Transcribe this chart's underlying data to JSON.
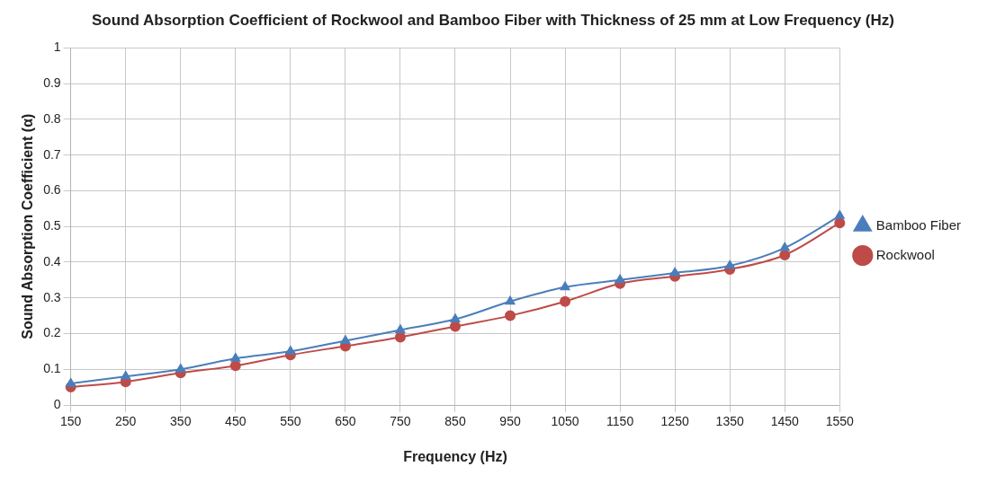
{
  "chart_data": {
    "type": "line",
    "title": "Sound Absorption Coefficient of Rockwool and Bamboo Fiber with Thickness of 25 mm at Low Frequency (Hz)",
    "xlabel": "Frequency (Hz)",
    "ylabel": "Sound Absorption Coefficient (α)",
    "categories": [
      "150",
      "250",
      "350",
      "450",
      "550",
      "650",
      "750",
      "850",
      "950",
      "1050",
      "1150",
      "1250",
      "1350",
      "1450",
      "1550"
    ],
    "series": [
      {
        "name": "Bamboo Fiber",
        "color": "#4a7ebb",
        "marker": "triangle",
        "values": [
          0.06,
          0.08,
          0.1,
          0.13,
          0.15,
          0.18,
          0.21,
          0.24,
          0.29,
          0.33,
          0.35,
          0.37,
          0.39,
          0.44,
          0.53
        ]
      },
      {
        "name": "Rockwool",
        "color": "#be4b48",
        "marker": "circle",
        "values": [
          0.05,
          0.065,
          0.09,
          0.11,
          0.14,
          0.165,
          0.19,
          0.22,
          0.25,
          0.29,
          0.34,
          0.36,
          0.38,
          0.42,
          0.51
        ]
      }
    ],
    "ylim": [
      0,
      1
    ],
    "yticks": [
      0,
      0.1,
      0.2,
      0.3,
      0.4,
      0.5,
      0.6,
      0.7,
      0.8,
      0.9,
      1
    ],
    "grid": true,
    "legend": "right"
  }
}
